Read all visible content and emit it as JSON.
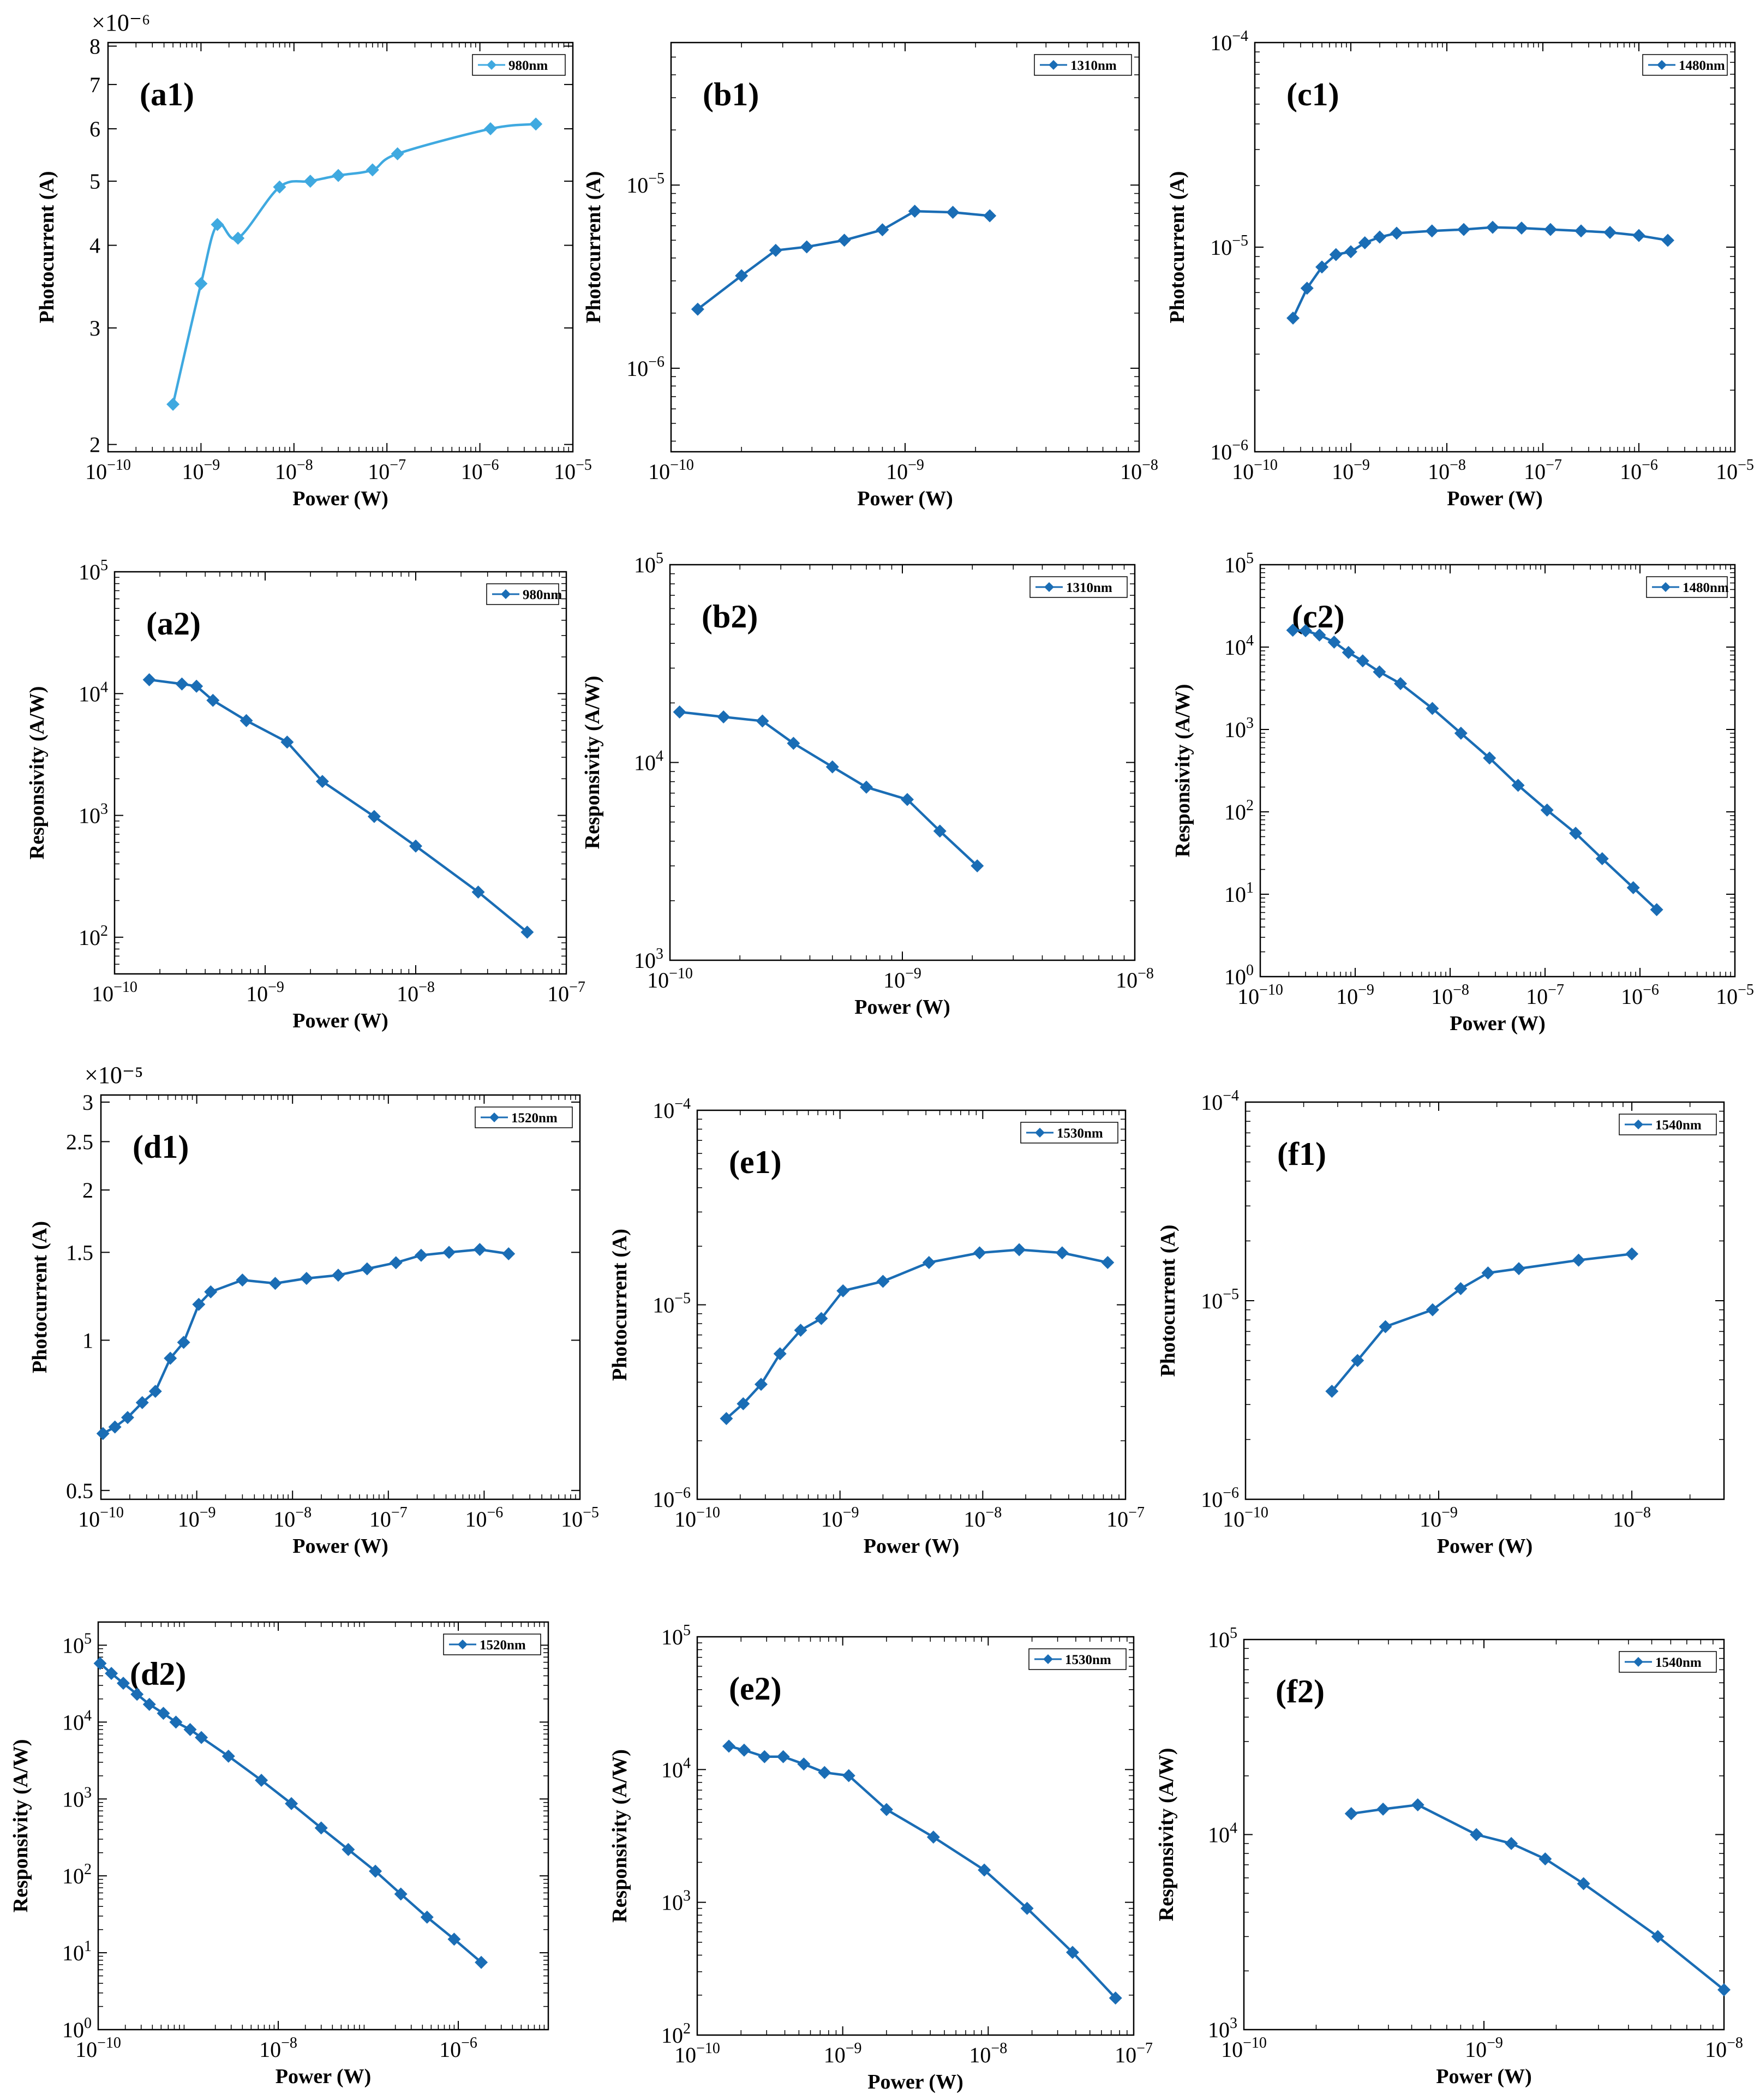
{
  "chart_data": [
    {
      "id": "a1",
      "type": "line",
      "tag": "(a1)",
      "legend": "980nm",
      "color": "#3fa9e0",
      "smooth": true,
      "xlabel": "Power (W)",
      "ylabel": "Photocurrent (A)",
      "xscale": "log",
      "yscale": "log",
      "xlim": [
        1e-10,
        1e-05
      ],
      "ylim": [
        1.95e-06,
        8.1e-06
      ],
      "multiplier": "×10⁻⁶",
      "xticks": [
        {
          "v": 1e-10,
          "b": "10",
          "e": "−10"
        },
        {
          "v": 1e-09,
          "b": "10",
          "e": "−9"
        },
        {
          "v": 1e-08,
          "b": "10",
          "e": "−8"
        },
        {
          "v": 1e-07,
          "b": "10",
          "e": "−7"
        },
        {
          "v": 1e-06,
          "b": "10",
          "e": "−6"
        },
        {
          "v": 1e-05,
          "b": "10",
          "e": "−5"
        }
      ],
      "yticks": [
        {
          "v": 2e-06,
          "t": "2"
        },
        {
          "v": 3e-06,
          "t": "3"
        },
        {
          "v": 4e-06,
          "t": "4"
        },
        {
          "v": 5e-06,
          "t": "5"
        },
        {
          "v": 6e-06,
          "t": "6"
        },
        {
          "v": 7e-06,
          "t": "7"
        },
        {
          "v": 8e-06,
          "t": "8"
        }
      ],
      "x": [
        5e-10,
        1e-09,
        1.5e-09,
        2.5e-09,
        7e-09,
        1.5e-08,
        3e-08,
        7e-08,
        1.3e-07,
        1.3e-06,
        4e-06
      ],
      "y": [
        2.3e-06,
        3.5e-06,
        4.3e-06,
        4.1e-06,
        4.9e-06,
        5e-06,
        5.1e-06,
        5.2e-06,
        5.5e-06,
        6e-06,
        6.1e-06
      ]
    },
    {
      "id": "b1",
      "type": "line",
      "tag": "(b1)",
      "legend": "1310nm",
      "color": "#1a6db5",
      "xlabel": "Power (W)",
      "ylabel": "Photocurrent (A)",
      "xscale": "log",
      "yscale": "log",
      "xlim": [
        1e-10,
        1e-08
      ],
      "ylim": [
        3.5e-07,
        6e-05
      ],
      "xticks": [
        {
          "v": 1e-10,
          "b": "10",
          "e": "−10"
        },
        {
          "v": 1e-09,
          "b": "10",
          "e": "−9"
        },
        {
          "v": 1e-08,
          "b": "10",
          "e": "−8"
        }
      ],
      "yticks": [
        {
          "v": 1e-06,
          "b": "10",
          "e": "−6"
        },
        {
          "v": 1e-05,
          "b": "10",
          "e": "−5"
        }
      ],
      "x": [
        1.3e-10,
        2e-10,
        2.8e-10,
        3.8e-10,
        5.5e-10,
        8e-10,
        1.1e-09,
        1.6e-09,
        2.3e-09
      ],
      "y": [
        2.1e-06,
        3.2e-06,
        4.4e-06,
        4.6e-06,
        5e-06,
        5.7e-06,
        7.2e-06,
        7.1e-06,
        6.8e-06
      ]
    },
    {
      "id": "c1",
      "type": "line",
      "tag": "(c1)",
      "legend": "1480nm",
      "color": "#1a6db5",
      "xlabel": "Power (W)",
      "ylabel": "Photocurrent (A)",
      "xscale": "log",
      "yscale": "log",
      "xlim": [
        1e-10,
        1e-05
      ],
      "ylim": [
        1e-06,
        0.0001
      ],
      "xticks": [
        {
          "v": 1e-10,
          "b": "10",
          "e": "−10"
        },
        {
          "v": 1e-09,
          "b": "10",
          "e": "−9"
        },
        {
          "v": 1e-08,
          "b": "10",
          "e": "−8"
        },
        {
          "v": 1e-07,
          "b": "10",
          "e": "−7"
        },
        {
          "v": 1e-06,
          "b": "10",
          "e": "−6"
        },
        {
          "v": 1e-05,
          "b": "10",
          "e": "−5"
        }
      ],
      "yticks": [
        {
          "v": 1e-06,
          "b": "10",
          "e": "−6"
        },
        {
          "v": 1e-05,
          "b": "10",
          "e": "−5"
        },
        {
          "v": 0.0001,
          "b": "10",
          "e": "−4"
        }
      ],
      "x": [
        2.5e-10,
        3.5e-10,
        5e-10,
        7e-10,
        1e-09,
        1.4e-09,
        2e-09,
        3e-09,
        7e-09,
        1.5e-08,
        3e-08,
        6e-08,
        1.2e-07,
        2.5e-07,
        5e-07,
        1e-06,
        2e-06
      ],
      "y": [
        4.5e-06,
        6.3e-06,
        8e-06,
        9.2e-06,
        9.5e-06,
        1.05e-05,
        1.12e-05,
        1.17e-05,
        1.2e-05,
        1.22e-05,
        1.25e-05,
        1.24e-05,
        1.22e-05,
        1.2e-05,
        1.18e-05,
        1.14e-05,
        1.08e-05
      ]
    },
    {
      "id": "a2",
      "type": "line",
      "tag": "(a2)",
      "legend": "980nm",
      "color": "#1a6db5",
      "xlabel": "Power (W)",
      "ylabel": "Responsivity (A/W)",
      "xscale": "log",
      "yscale": "log",
      "xlim": [
        1e-10,
        1e-07
      ],
      "ylim": [
        50,
        100000.0
      ],
      "xticks": [
        {
          "v": 1e-10,
          "b": "10",
          "e": "−10"
        },
        {
          "v": 1e-09,
          "b": "10",
          "e": "−9"
        },
        {
          "v": 1e-08,
          "b": "10",
          "e": "−8"
        },
        {
          "v": 1e-07,
          "b": "10",
          "e": "−7"
        }
      ],
      "yticks": [
        {
          "v": 100,
          "b": "10",
          "e": "2"
        },
        {
          "v": 1000,
          "b": "10",
          "e": "3"
        },
        {
          "v": 10000,
          "b": "10",
          "e": "4"
        },
        {
          "v": 100000,
          "b": "10",
          "e": "5"
        }
      ],
      "x": [
        1.7e-10,
        2.8e-10,
        3.5e-10,
        4.5e-10,
        7.5e-10,
        1.4e-09,
        2.4e-09,
        5.3e-09,
        1e-08,
        2.6e-08,
        5.5e-08
      ],
      "y": [
        13000,
        12000,
        11500,
        8800,
        6000,
        4000,
        1900,
        980,
        560,
        235,
        110
      ]
    },
    {
      "id": "b2",
      "type": "line",
      "tag": "(b2)",
      "legend": "1310nm",
      "color": "#1a6db5",
      "xlabel": "Power (W)",
      "ylabel": "Responsivity (A/W)",
      "xscale": "log",
      "yscale": "log",
      "xlim": [
        1e-10,
        1e-08
      ],
      "ylim": [
        1000,
        100000.0
      ],
      "xticks": [
        {
          "v": 1e-10,
          "b": "10",
          "e": "−10"
        },
        {
          "v": 1e-09,
          "b": "10",
          "e": "−9"
        },
        {
          "v": 1e-08,
          "b": "10",
          "e": "−8"
        }
      ],
      "yticks": [
        {
          "v": 1000,
          "b": "10",
          "e": "3"
        },
        {
          "v": 10000,
          "b": "10",
          "e": "4"
        },
        {
          "v": 100000,
          "b": "10",
          "e": "5"
        }
      ],
      "x": [
        1.1e-10,
        1.7e-10,
        2.5e-10,
        3.4e-10,
        5e-10,
        7e-10,
        1.05e-09,
        1.45e-09,
        2.1e-09
      ],
      "y": [
        18000,
        17000,
        16200,
        12500,
        9500,
        7500,
        6500,
        4500,
        3000
      ]
    },
    {
      "id": "c2",
      "type": "line",
      "tag": "(c2)",
      "legend": "1480nm",
      "color": "#1a6db5",
      "xlabel": "Power (W)",
      "ylabel": "Responsivity (A/W)",
      "xscale": "log",
      "yscale": "log",
      "xlim": [
        1e-10,
        1e-05
      ],
      "ylim": [
        1,
        100000.0
      ],
      "xticks": [
        {
          "v": 1e-10,
          "b": "10",
          "e": "−10"
        },
        {
          "v": 1e-09,
          "b": "10",
          "e": "−9"
        },
        {
          "v": 1e-08,
          "b": "10",
          "e": "−8"
        },
        {
          "v": 1e-07,
          "b": "10",
          "e": "−7"
        },
        {
          "v": 1e-06,
          "b": "10",
          "e": "−6"
        },
        {
          "v": 1e-05,
          "b": "10",
          "e": "−5"
        }
      ],
      "yticks": [
        {
          "v": 1,
          "b": "10",
          "e": "0"
        },
        {
          "v": 10,
          "b": "10",
          "e": "1"
        },
        {
          "v": 100,
          "b": "10",
          "e": "2"
        },
        {
          "v": 1000,
          "b": "10",
          "e": "3"
        },
        {
          "v": 10000,
          "b": "10",
          "e": "4"
        },
        {
          "v": 100000,
          "b": "10",
          "e": "5"
        }
      ],
      "x": [
        2.2e-10,
        3e-10,
        4.2e-10,
        6e-10,
        8.5e-10,
        1.2e-09,
        1.8e-09,
        3e-09,
        6.5e-09,
        1.3e-08,
        2.6e-08,
        5.2e-08,
        1.05e-07,
        2.1e-07,
        4e-07,
        8.5e-07,
        1.5e-06
      ],
      "y": [
        16000,
        15800,
        14000,
        11500,
        8600,
        6800,
        5000,
        3600,
        1800,
        900,
        450,
        210,
        105,
        55,
        27,
        12,
        6.5
      ]
    },
    {
      "id": "d1",
      "type": "line",
      "tag": "(d1)",
      "legend": "1520nm",
      "color": "#1a6db5",
      "xlabel": "Power (W)",
      "ylabel": "Photocurrent (A)",
      "xscale": "log",
      "yscale": "log",
      "xlim": [
        1e-10,
        1e-05
      ],
      "ylim": [
        4.8e-06,
        3.1e-05
      ],
      "multiplier": "×10⁻⁵",
      "xticks": [
        {
          "v": 1e-10,
          "b": "10",
          "e": "−10"
        },
        {
          "v": 1e-09,
          "b": "10",
          "e": "−9"
        },
        {
          "v": 1e-08,
          "b": "10",
          "e": "−8"
        },
        {
          "v": 1e-07,
          "b": "10",
          "e": "−7"
        },
        {
          "v": 1e-06,
          "b": "10",
          "e": "−6"
        },
        {
          "v": 1e-05,
          "b": "10",
          "e": "−5"
        }
      ],
      "yticks": [
        {
          "v": 5e-06,
          "t": "0.5"
        },
        {
          "v": 1e-05,
          "t": "1"
        },
        {
          "v": 1.5e-05,
          "t": "1.5"
        },
        {
          "v": 2e-05,
          "t": "2"
        },
        {
          "v": 2.5e-05,
          "t": "2.5"
        },
        {
          "v": 3e-05,
          "t": "3"
        }
      ],
      "x": [
        1.05e-10,
        1.4e-10,
        1.9e-10,
        2.7e-10,
        3.7e-10,
        5.3e-10,
        7.3e-10,
        1.05e-09,
        1.4e-09,
        3e-09,
        6.6e-09,
        1.4e-08,
        3e-08,
        6e-08,
        1.2e-07,
        2.2e-07,
        4.3e-07,
        9e-07,
        1.8e-06
      ],
      "y": [
        6.5e-06,
        6.7e-06,
        7e-06,
        7.5e-06,
        7.9e-06,
        9.2e-06,
        9.9e-06,
        1.18e-05,
        1.25e-05,
        1.32e-05,
        1.3e-05,
        1.33e-05,
        1.35e-05,
        1.39e-05,
        1.43e-05,
        1.48e-05,
        1.5e-05,
        1.52e-05,
        1.49e-05
      ]
    },
    {
      "id": "e1",
      "type": "line",
      "tag": "(e1)",
      "legend": "1530nm",
      "color": "#1a6db5",
      "xlabel": "Power (W)",
      "ylabel": "Photocurrent (A)",
      "xscale": "log",
      "yscale": "log",
      "xlim": [
        1e-10,
        1e-07
      ],
      "ylim": [
        1e-06,
        0.0001
      ],
      "xticks": [
        {
          "v": 1e-10,
          "b": "10",
          "e": "−10"
        },
        {
          "v": 1e-09,
          "b": "10",
          "e": "−9"
        },
        {
          "v": 1e-08,
          "b": "10",
          "e": "−8"
        },
        {
          "v": 1e-07,
          "b": "10",
          "e": "−7"
        }
      ],
      "yticks": [
        {
          "v": 1e-06,
          "b": "10",
          "e": "−6"
        },
        {
          "v": 1e-05,
          "b": "10",
          "e": "−5"
        },
        {
          "v": 0.0001,
          "b": "10",
          "e": "−4"
        }
      ],
      "x": [
        1.6e-10,
        2.1e-10,
        2.8e-10,
        3.8e-10,
        5.3e-10,
        7.4e-10,
        1.05e-09,
        2e-09,
        4.2e-09,
        9.5e-09,
        1.8e-08,
        3.6e-08,
        7.5e-08
      ],
      "y": [
        2.6e-06,
        3.1e-06,
        3.9e-06,
        5.6e-06,
        7.4e-06,
        8.5e-06,
        1.18e-05,
        1.32e-05,
        1.65e-05,
        1.85e-05,
        1.92e-05,
        1.85e-05,
        1.65e-05
      ]
    },
    {
      "id": "f1",
      "type": "line",
      "tag": "(f1)",
      "legend": "1540nm",
      "color": "#1a6db5",
      "xlabel": "Power (W)",
      "ylabel": "Photocurrent (A)",
      "xscale": "log",
      "yscale": "log",
      "xlim": [
        1e-10,
        3e-08
      ],
      "ylim": [
        1e-06,
        0.0001
      ],
      "xticks": [
        {
          "v": 1e-10,
          "b": "10",
          "e": "−10"
        },
        {
          "v": 1e-09,
          "b": "10",
          "e": "−9"
        },
        {
          "v": 1e-08,
          "b": "10",
          "e": "−8"
        }
      ],
      "yticks": [
        {
          "v": 1e-06,
          "b": "10",
          "e": "−6"
        },
        {
          "v": 1e-05,
          "b": "10",
          "e": "−5"
        },
        {
          "v": 0.0001,
          "b": "10",
          "e": "−4"
        }
      ],
      "x": [
        2.8e-10,
        3.8e-10,
        5.3e-10,
        9.3e-10,
        1.3e-09,
        1.8e-09,
        2.6e-09,
        5.3e-09,
        1e-08
      ],
      "y": [
        3.5e-06,
        5e-06,
        7.4e-06,
        9e-06,
        1.15e-05,
        1.38e-05,
        1.45e-05,
        1.6e-05,
        1.72e-05
      ]
    },
    {
      "id": "d2",
      "type": "line",
      "tag": "(d2)",
      "legend": "1520nm",
      "color": "#1a6db5",
      "xlabel": "Power (W)",
      "ylabel": "Responsivity (A/W)",
      "xscale": "log",
      "yscale": "log",
      "xlim": [
        1e-10,
        1e-05
      ],
      "ylim": [
        1,
        200000.0
      ],
      "xticks": [
        {
          "v": 1e-10,
          "b": "10",
          "e": "−10"
        },
        {
          "v": 1e-08,
          "b": "10",
          "e": "−8"
        },
        {
          "v": 1e-06,
          "b": "10",
          "e": "−6"
        }
      ],
      "yticks": [
        {
          "v": 1,
          "b": "10",
          "e": "0"
        },
        {
          "v": 10,
          "b": "10",
          "e": "1"
        },
        {
          "v": 100,
          "b": "10",
          "e": "2"
        },
        {
          "v": 1000,
          "b": "10",
          "e": "3"
        },
        {
          "v": 10000,
          "b": "10",
          "e": "4"
        },
        {
          "v": 100000,
          "b": "10",
          "e": "5"
        }
      ],
      "x": [
        1.05e-10,
        1.4e-10,
        1.9e-10,
        2.7e-10,
        3.7e-10,
        5.3e-10,
        7.3e-10,
        1.05e-09,
        1.4e-09,
        2.8e-09,
        6.5e-09,
        1.4e-08,
        3e-08,
        6e-08,
        1.2e-07,
        2.3e-07,
        4.5e-07,
        9e-07,
        1.8e-06
      ],
      "y": [
        58000,
        43000,
        32000,
        23000,
        17000,
        13000,
        10000,
        8000,
        6300,
        3600,
        1750,
        870,
        420,
        220,
        115,
        58,
        29,
        15,
        7.5
      ]
    },
    {
      "id": "e2",
      "type": "line",
      "tag": "(e2)",
      "legend": "1530nm",
      "color": "#1a6db5",
      "xlabel": "Power (W)",
      "ylabel": "Responsivity (A/W)",
      "xscale": "log",
      "yscale": "log",
      "xlim": [
        1e-10,
        1e-07
      ],
      "ylim": [
        100,
        100000.0
      ],
      "xticks": [
        {
          "v": 1e-10,
          "b": "10",
          "e": "−10"
        },
        {
          "v": 1e-09,
          "b": "10",
          "e": "−9"
        },
        {
          "v": 1e-08,
          "b": "10",
          "e": "−8"
        },
        {
          "v": 1e-07,
          "b": "10",
          "e": "−7"
        }
      ],
      "yticks": [
        {
          "v": 100,
          "b": "10",
          "e": "2"
        },
        {
          "v": 1000,
          "b": "10",
          "e": "3"
        },
        {
          "v": 10000,
          "b": "10",
          "e": "4"
        },
        {
          "v": 100000,
          "b": "10",
          "e": "5"
        }
      ],
      "x": [
        1.65e-10,
        2.1e-10,
        2.9e-10,
        3.9e-10,
        5.4e-10,
        7.5e-10,
        1.1e-09,
        2e-09,
        4.2e-09,
        9.4e-09,
        1.85e-08,
        3.8e-08,
        7.5e-08
      ],
      "y": [
        15000,
        14000,
        12500,
        12500,
        11000,
        9500,
        9000,
        5000,
        3100,
        1750,
        900,
        420,
        190
      ]
    },
    {
      "id": "f2",
      "type": "line",
      "tag": "(f2)",
      "legend": "1540nm",
      "color": "#1a6db5",
      "xlabel": "Power (W)",
      "ylabel": "Responsivity (A/W)",
      "xscale": "log",
      "yscale": "log",
      "xlim": [
        1e-10,
        1e-08
      ],
      "ylim": [
        1000,
        100000.0
      ],
      "xticks": [
        {
          "v": 1e-10,
          "b": "10",
          "e": "−10"
        },
        {
          "v": 1e-09,
          "b": "10",
          "e": "−9"
        },
        {
          "v": 1e-08,
          "b": "10",
          "e": "−8"
        }
      ],
      "yticks": [
        {
          "v": 1000,
          "b": "10",
          "e": "3"
        },
        {
          "v": 10000,
          "b": "10",
          "e": "4"
        },
        {
          "v": 100000,
          "b": "10",
          "e": "5"
        }
      ],
      "x": [
        2.8e-10,
        3.8e-10,
        5.3e-10,
        9.3e-10,
        1.3e-09,
        1.8e-09,
        2.6e-09,
        5.3e-09,
        1e-08
      ],
      "y": [
        12800,
        13500,
        14200,
        10000,
        9000,
        7500,
        5600,
        3000,
        1600
      ]
    }
  ]
}
